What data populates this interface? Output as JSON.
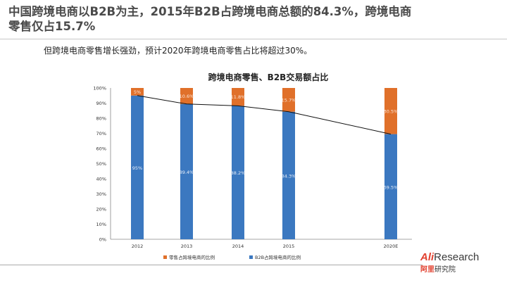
{
  "slide": {
    "title_line1": "中国跨境电商以B2B为主，2015年B2B占跨境电商总额的84.3%，跨境电商",
    "title_line2": "零售仅占15.7%",
    "subtitle": "但跨境电商零售增长强劲，预计2020年跨境电商零售占比将超过30%。"
  },
  "logo": {
    "ali": "Ali",
    "research": "Research",
    "cn_red": "阿里",
    "cn": "研究院"
  },
  "colors": {
    "b2b": "#3b78c0",
    "retail": "#e0702a",
    "line": "#111111",
    "axis_text": "#333333",
    "gridline": "#d9d9d9"
  },
  "chart_data": {
    "type": "bar",
    "stacked": true,
    "title": "跨境电商零售、B2B交易额占比",
    "categories": [
      "2012",
      "2013",
      "2014",
      "2015",
      "2020E"
    ],
    "ylim": [
      0,
      100
    ],
    "yticks": [
      "0%",
      "10%",
      "20%",
      "30%",
      "40%",
      "50%",
      "60%",
      "70%",
      "80%",
      "90%",
      "100%"
    ],
    "series": [
      {
        "name": "B2B占跨境电商的比例",
        "values": [
          95,
          89.4,
          88.2,
          84.3,
          69.5
        ],
        "labels": [
          "95%",
          "89.4%",
          "88.2%",
          "84.3%",
          "69.5%"
        ],
        "color_key": "b2b"
      },
      {
        "name": "零售占跨境电商的比例",
        "values": [
          5,
          10.6,
          11.8,
          15.7,
          30.5
        ],
        "labels": [
          "5%",
          "10.6%",
          "11.8%",
          "15.7%",
          "30.5%"
        ],
        "color_key": "retail"
      }
    ],
    "trend_line": {
      "series_index": 0
    },
    "legend": [
      {
        "label": "零售占跨境电商的比例",
        "color_key": "retail"
      },
      {
        "label": "B2B占跨境电商的比例",
        "color_key": "b2b"
      }
    ],
    "legend_position": "bottom"
  }
}
